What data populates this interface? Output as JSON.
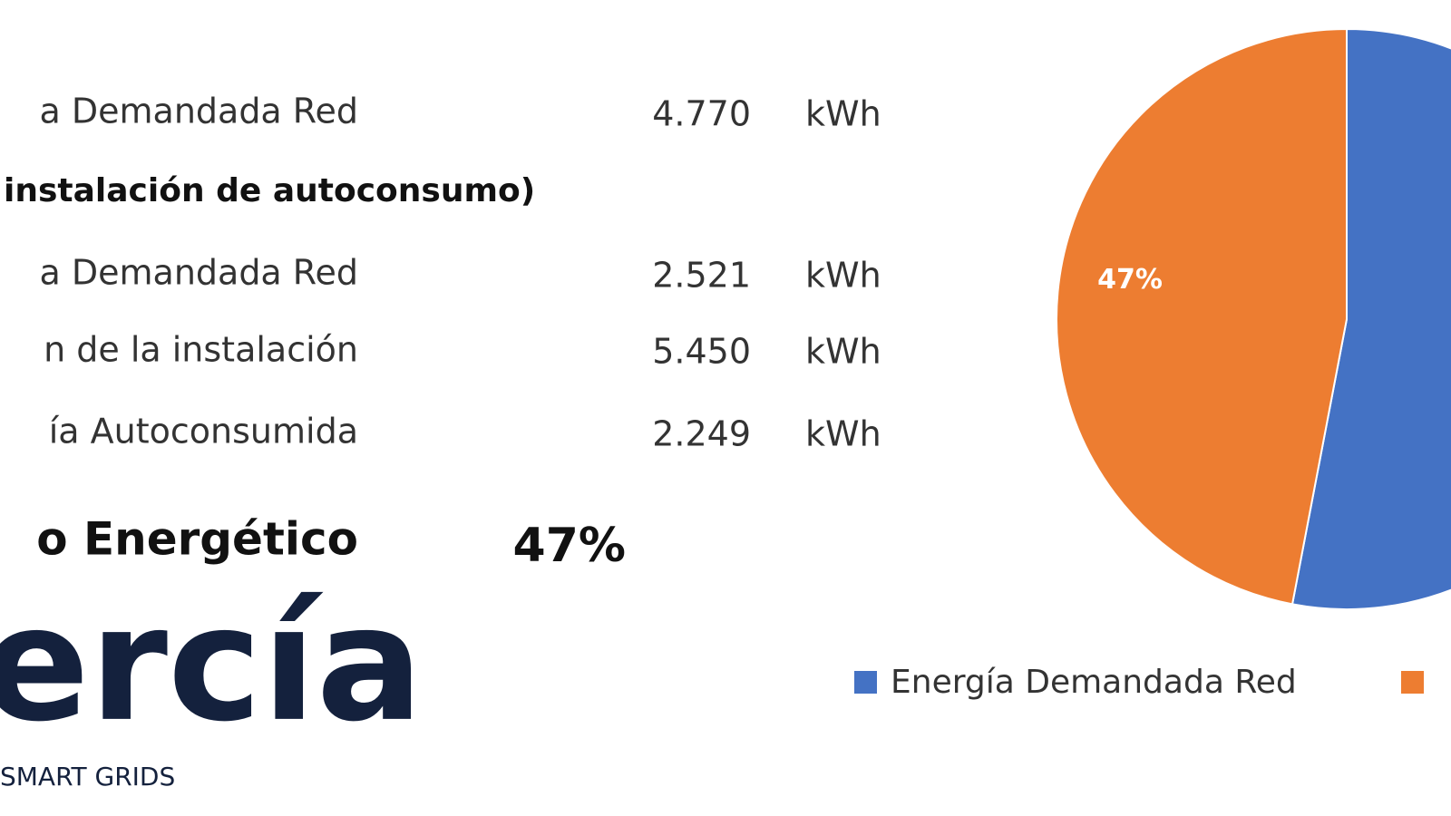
{
  "rows": [
    {
      "label": "a Demandada Red",
      "value": "4.770",
      "unit": "kWh"
    },
    {
      "label": "a Demandada Red",
      "value": "2.521",
      "unit": "kWh"
    },
    {
      "label": "n de la instalación",
      "value": "5.450",
      "unit": "kWh"
    },
    {
      "label": "ía Autoconsumida",
      "value": "2.249",
      "unit": "kWh"
    }
  ],
  "section": "instalación de autoconsumo)",
  "kpi": {
    "label": "o Energético",
    "value": "47%"
  },
  "logo": {
    "wordmark": "ercía",
    "tagline": "SMART GRIDS"
  },
  "chart_data": {
    "type": "pie",
    "categories": [
      "Energía Demandada Red",
      null
    ],
    "values": [
      53,
      47
    ],
    "value_labels": [
      null,
      "47%"
    ],
    "colors": [
      "#4472c4",
      "#ed7d31"
    ]
  }
}
